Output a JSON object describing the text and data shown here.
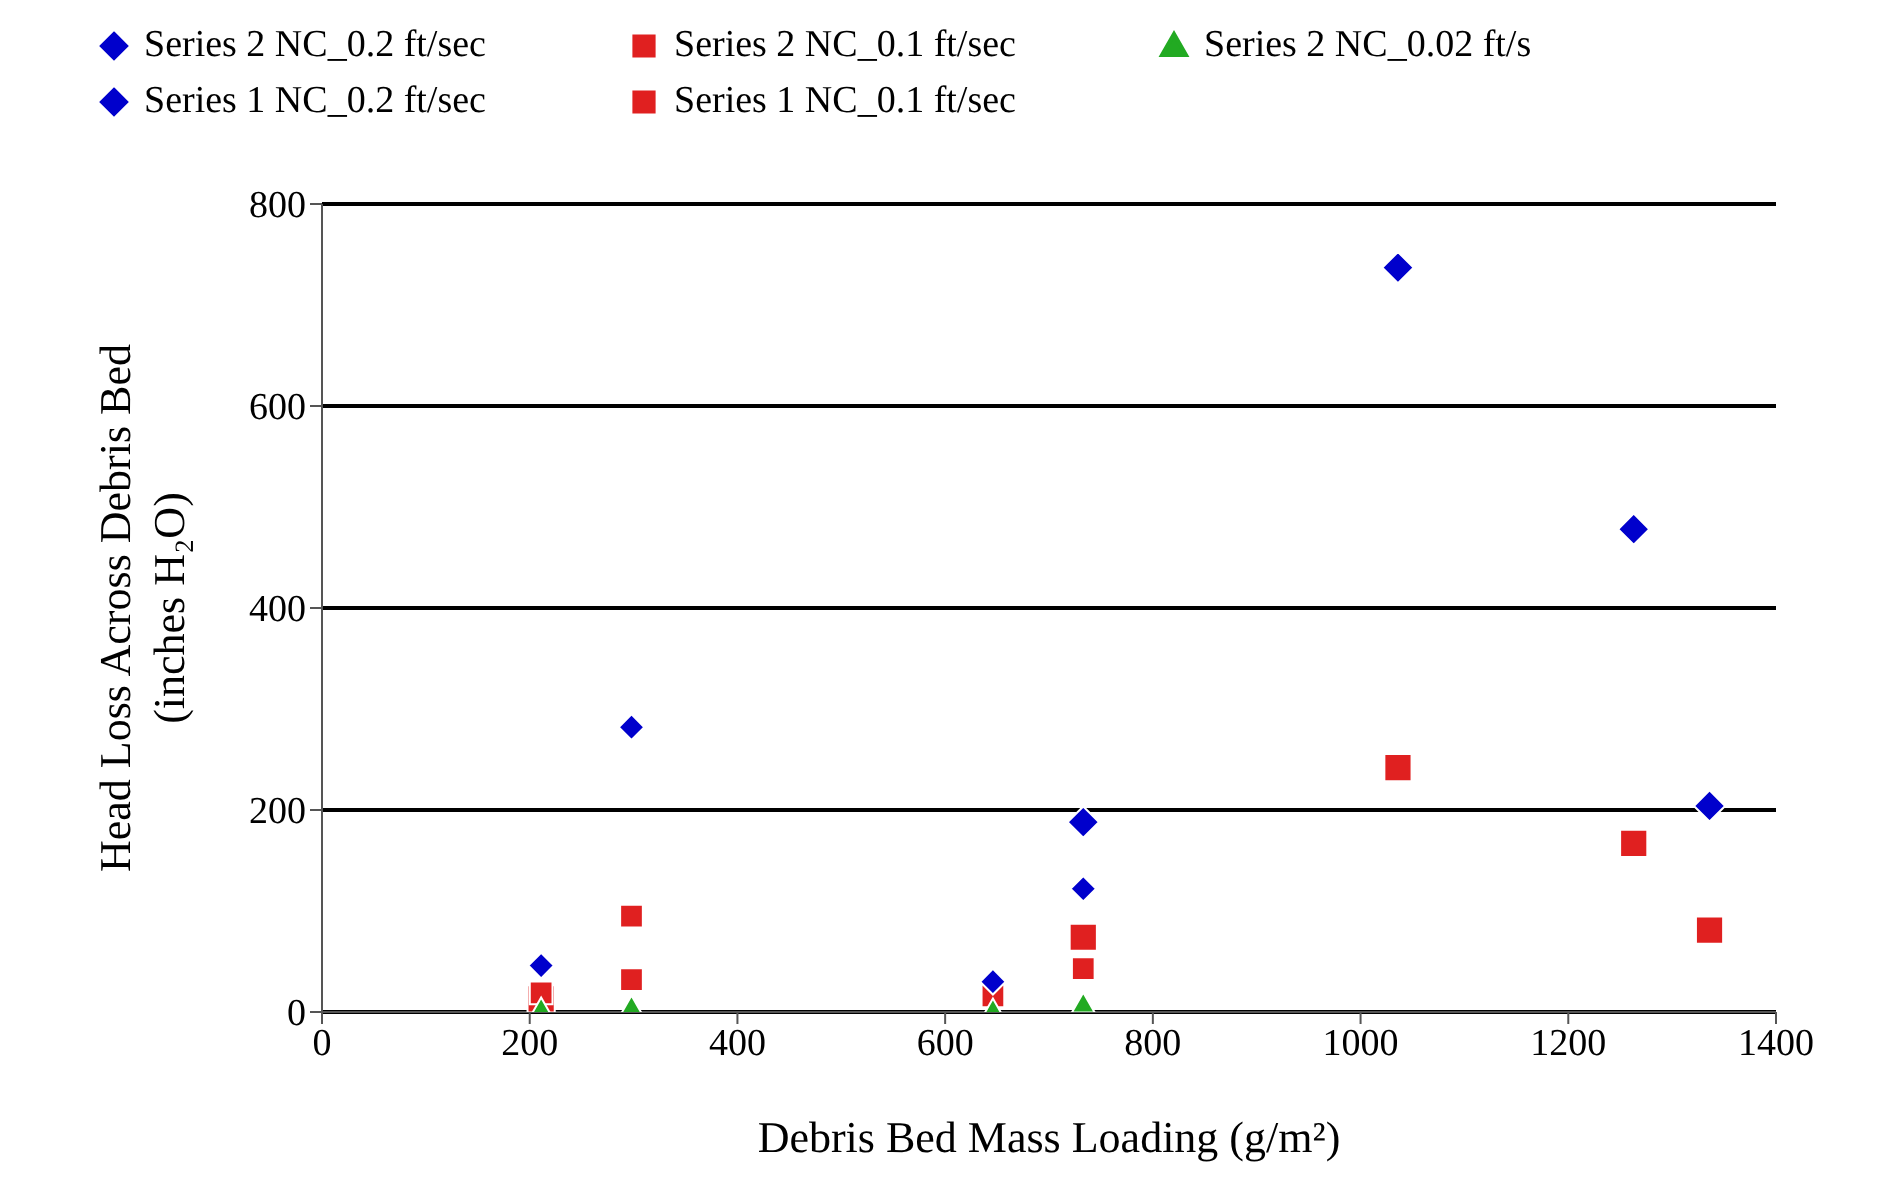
{
  "chart_data": {
    "type": "scatter",
    "xlabel": "Debris Bed Mass Loading (g/m²)",
    "ylabel": "Head Loss Across Debris Bed\n(inches H₂O)",
    "xlim": [
      0,
      1400
    ],
    "xticks": [
      0,
      200,
      400,
      600,
      800,
      1000,
      1200,
      1400
    ],
    "ylim": [
      0,
      800
    ],
    "yticks": [
      0,
      200,
      400,
      600,
      800
    ],
    "grid": "y",
    "legend": "top",
    "series": [
      {
        "name": "Series 2 NC_0.2 ft/sec",
        "color": "#0000cc",
        "marker": "diamond",
        "x": [
          211,
          298,
          646,
          733
        ],
        "values": [
          46,
          282,
          30,
          122
        ]
      },
      {
        "name": "Series 2 NC_0.1 ft/sec",
        "color": "#e02020",
        "marker": "square",
        "x": [
          211,
          298,
          298,
          646,
          733
        ],
        "values": [
          19,
          95,
          32,
          16,
          43
        ]
      },
      {
        "name": "Series 2 NC_0.02 ft/s",
        "color": "#22aa22",
        "marker": "triangle",
        "x": [
          211,
          298,
          646,
          733
        ],
        "values": [
          3,
          5,
          2,
          8
        ]
      },
      {
        "name": "Series 1 NC_0.2 ft/sec",
        "color": "#0000cc",
        "marker": "diamond",
        "x": [
          733,
          1036,
          1263,
          1336
        ],
        "values": [
          188,
          737,
          478,
          204
        ]
      },
      {
        "name": "Series 1 NC_0.1 ft/sec",
        "color": "#e02020",
        "marker": "square",
        "x": [
          211,
          733,
          1036,
          1263,
          1336
        ],
        "values": [
          13,
          74,
          242,
          167,
          81
        ]
      }
    ]
  }
}
